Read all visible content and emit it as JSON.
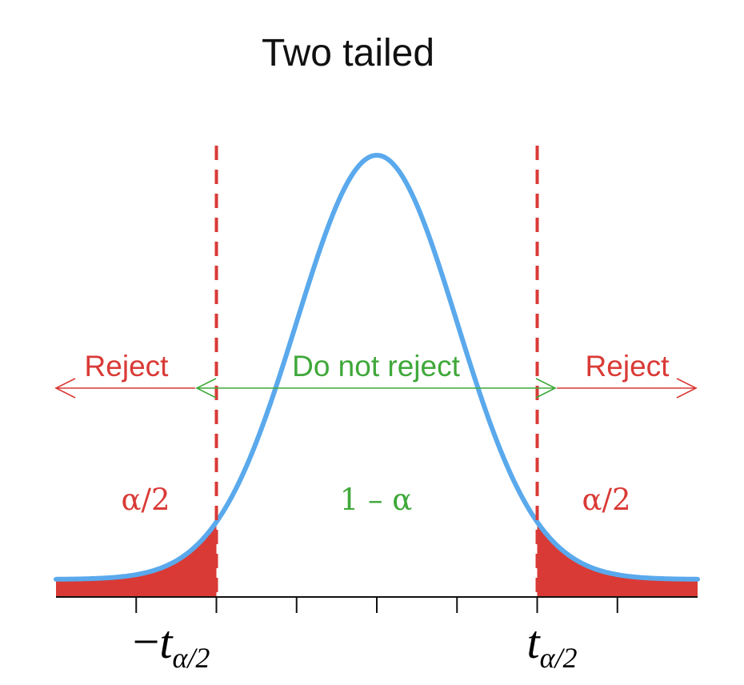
{
  "title": "Two tailed",
  "colors": {
    "curve": "#5aa9ec",
    "reject": "#d93a36",
    "accept": "#3fa83a",
    "axis": "#111111"
  },
  "labels": {
    "reject_left": "Reject",
    "do_not_reject": "Do not reject",
    "reject_right": "Reject",
    "alpha_half_left": "α/2",
    "one_minus_alpha": "1 – α",
    "alpha_half_right": "α/2"
  },
  "critical_values": {
    "left": {
      "sign": "−",
      "symbol": "t",
      "subscript": "α/2"
    },
    "right": {
      "symbol": "t",
      "subscript": "α/2"
    }
  },
  "chart_data": {
    "type": "area",
    "distribution": "t",
    "xlim": [
      -4,
      4
    ],
    "critical_value": 2,
    "x_ticks": [
      -3,
      -2,
      -1,
      0,
      1,
      2,
      3
    ],
    "regions": [
      {
        "label": "Reject",
        "area": "α/2",
        "range": [
          -4,
          -2
        ]
      },
      {
        "label": "Do not reject",
        "area": "1 – α",
        "range": [
          -2,
          2
        ]
      },
      {
        "label": "Reject",
        "area": "α/2",
        "range": [
          2,
          4
        ]
      }
    ]
  }
}
